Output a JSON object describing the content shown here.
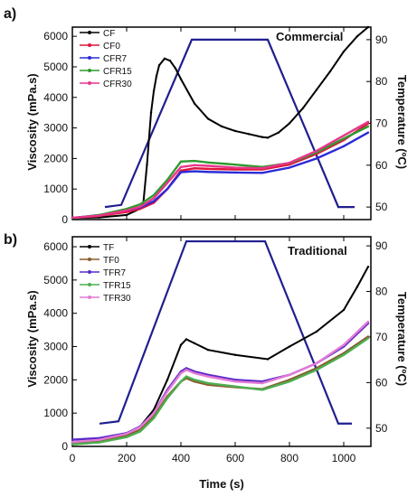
{
  "figure": {
    "x_axis_label": "Time (s)"
  },
  "colors": {
    "temperature": "#1f1f8f",
    "CF": "#000000",
    "CF0": "#e0143c",
    "CFR7": "#2b2bd8",
    "CFR15": "#2e9a2e",
    "CFR30": "#e8368a",
    "TF": "#000000",
    "TF0": "#8b5a2b",
    "TFR7": "#5a2bc8",
    "TFR15": "#4caf50",
    "TFR30": "#e37ad6"
  },
  "chart_data": [
    {
      "type": "line",
      "panel_label": "a)",
      "title": "Commercial",
      "xlabel": "Time (s)",
      "ylabel": "Viscosity (mPa.s)",
      "y2label": "Temperature (ºC)",
      "xlim": [
        0,
        1100
      ],
      "ylim": [
        0,
        6300
      ],
      "y2lim": [
        47,
        93
      ],
      "x_ticks": [
        "0",
        "200",
        "400",
        "600",
        "800",
        "1000"
      ],
      "y_ticks": [
        "0",
        "1000",
        "2000",
        "3000",
        "4000",
        "5000",
        "6000"
      ],
      "y2_ticks": [
        "50",
        "60",
        "70",
        "80",
        "90"
      ],
      "legend": [
        "CF",
        "CF0",
        "CFR7",
        "CFR15",
        "CFR30"
      ],
      "temperature": {
        "x": [
          120,
          180,
          440,
          720,
          980,
          1040
        ],
        "y": [
          50,
          50.5,
          90,
          90,
          50,
          50
        ]
      },
      "series": [
        {
          "name": "CF",
          "x": [
            0,
            100,
            200,
            260,
            275,
            290,
            300,
            310,
            320,
            340,
            360,
            380,
            400,
            450,
            500,
            550,
            600,
            650,
            700,
            720,
            760,
            800,
            850,
            900,
            950,
            1000,
            1050,
            1090
          ],
          "y": [
            50,
            70,
            150,
            400,
            1800,
            3500,
            4200,
            4700,
            5050,
            5270,
            5200,
            4950,
            4600,
            3800,
            3300,
            3050,
            2900,
            2800,
            2700,
            2680,
            2850,
            3150,
            3650,
            4250,
            4850,
            5500,
            6000,
            6300
          ]
        },
        {
          "name": "CF0",
          "x": [
            0,
            100,
            200,
            250,
            300,
            350,
            400,
            450,
            500,
            600,
            700,
            800,
            900,
            1000,
            1090
          ],
          "y": [
            50,
            120,
            250,
            350,
            550,
            1000,
            1600,
            1680,
            1660,
            1640,
            1640,
            1800,
            2150,
            2600,
            3150
          ]
        },
        {
          "name": "CFR7",
          "x": [
            0,
            100,
            200,
            250,
            300,
            350,
            400,
            450,
            500,
            600,
            700,
            800,
            900,
            1000,
            1090
          ],
          "y": [
            50,
            150,
            300,
            400,
            600,
            1000,
            1550,
            1580,
            1560,
            1540,
            1530,
            1700,
            2000,
            2400,
            2850
          ]
        },
        {
          "name": "CFR15",
          "x": [
            0,
            100,
            200,
            250,
            300,
            350,
            400,
            450,
            500,
            600,
            700,
            800,
            900,
            1000,
            1090
          ],
          "y": [
            50,
            150,
            350,
            500,
            800,
            1300,
            1900,
            1920,
            1870,
            1800,
            1720,
            1850,
            2200,
            2650,
            3050
          ]
        },
        {
          "name": "CFR30",
          "x": [
            0,
            100,
            200,
            250,
            300,
            350,
            400,
            450,
            500,
            600,
            700,
            800,
            900,
            1000,
            1090
          ],
          "y": [
            60,
            130,
            300,
            420,
            700,
            1200,
            1720,
            1780,
            1760,
            1700,
            1680,
            1860,
            2250,
            2750,
            3200
          ]
        }
      ]
    },
    {
      "type": "line",
      "panel_label": "b)",
      "title": "Traditional",
      "xlabel": "Time (s)",
      "ylabel": "Viscosity (mPa.s)",
      "y2label": "Temperature (ºC)",
      "xlim": [
        0,
        1100
      ],
      "ylim": [
        0,
        6300
      ],
      "y2lim": [
        46,
        92
      ],
      "x_ticks": [
        "0",
        "200",
        "400",
        "600",
        "800",
        "1000"
      ],
      "y_ticks": [
        "0",
        "1000",
        "2000",
        "3000",
        "4000",
        "5000",
        "6000"
      ],
      "y2_ticks": [
        "50",
        "60",
        "70",
        "80",
        "90"
      ],
      "legend": [
        "TF",
        "TF0",
        "TFR7",
        "TFR15",
        "TFR30"
      ],
      "temperature": {
        "x": [
          100,
          170,
          420,
          710,
          980,
          1030
        ],
        "y": [
          51,
          51.5,
          91,
          91,
          51,
          51
        ]
      },
      "series": [
        {
          "name": "TF",
          "x": [
            0,
            100,
            200,
            250,
            300,
            350,
            400,
            420,
            450,
            500,
            600,
            720,
            800,
            900,
            1000,
            1050,
            1090
          ],
          "y": [
            120,
            180,
            350,
            600,
            1100,
            2000,
            3050,
            3220,
            3100,
            2900,
            2750,
            2620,
            3000,
            3450,
            4100,
            4800,
            5400
          ]
        },
        {
          "name": "TF0",
          "x": [
            0,
            100,
            200,
            250,
            300,
            350,
            400,
            420,
            450,
            500,
            600,
            700,
            800,
            900,
            1000,
            1090
          ],
          "y": [
            80,
            150,
            320,
            500,
            900,
            1500,
            1950,
            2050,
            1950,
            1850,
            1780,
            1720,
            2000,
            2350,
            2800,
            3300
          ]
        },
        {
          "name": "TFR7",
          "x": [
            0,
            100,
            200,
            250,
            300,
            350,
            400,
            420,
            450,
            500,
            600,
            700,
            800,
            900,
            1000,
            1090
          ],
          "y": [
            200,
            250,
            400,
            600,
            1000,
            1700,
            2250,
            2350,
            2250,
            2150,
            2000,
            1950,
            2150,
            2500,
            3000,
            3700
          ]
        },
        {
          "name": "TFR15",
          "x": [
            0,
            100,
            200,
            250,
            300,
            350,
            400,
            420,
            450,
            500,
            600,
            700,
            800,
            900,
            1000,
            1090
          ],
          "y": [
            60,
            120,
            280,
            450,
            850,
            1450,
            1950,
            2100,
            2000,
            1900,
            1800,
            1700,
            1950,
            2300,
            2750,
            3250
          ]
        },
        {
          "name": "TFR30",
          "x": [
            0,
            100,
            200,
            250,
            300,
            350,
            400,
            420,
            450,
            500,
            600,
            700,
            800,
            900,
            1000,
            1090
          ],
          "y": [
            130,
            200,
            380,
            580,
            1000,
            1650,
            2200,
            2300,
            2200,
            2100,
            1950,
            1900,
            2150,
            2500,
            3050,
            3750
          ]
        }
      ]
    }
  ]
}
